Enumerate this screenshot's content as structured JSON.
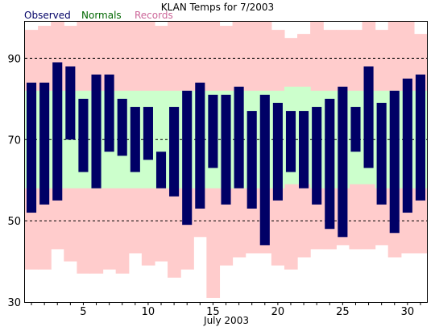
{
  "chart_data": {
    "type": "bar",
    "title": "KLAN Temps for 7/2003",
    "xlabel": "July 2003",
    "ylabel": "",
    "ylim": [
      30,
      99
    ],
    "grid": "dashed lines at 50, 70, 90",
    "legend": {
      "placement": "top-left",
      "entries": [
        {
          "name": "Observed",
          "color": "#000066"
        },
        {
          "name": "Normals",
          "color": "#006600"
        },
        {
          "name": "Records",
          "color": "#cc6699"
        }
      ]
    },
    "yticks": [
      30,
      50,
      70,
      90
    ],
    "xticks": [
      5,
      10,
      15,
      20,
      25,
      30
    ],
    "days": [
      1,
      2,
      3,
      4,
      5,
      6,
      7,
      8,
      9,
      10,
      11,
      12,
      13,
      14,
      15,
      16,
      17,
      18,
      19,
      20,
      21,
      22,
      23,
      24,
      25,
      26,
      27,
      28,
      29,
      30,
      31
    ],
    "series": [
      {
        "name": "Observed",
        "color": "#000066",
        "high": [
          84,
          84,
          89,
          88,
          80,
          86,
          86,
          80,
          78,
          78,
          67,
          78,
          82,
          84,
          81,
          81,
          83,
          77,
          81,
          79,
          77,
          77,
          78,
          80,
          83,
          78,
          88,
          79,
          82,
          85,
          86
        ],
        "low": [
          52,
          54,
          55,
          70,
          62,
          58,
          67,
          66,
          62,
          65,
          58,
          56,
          49,
          53,
          63,
          54,
          58,
          53,
          44,
          55,
          62,
          58,
          54,
          48,
          46,
          67,
          63,
          54,
          47,
          52,
          55
        ]
      },
      {
        "name": "Normals",
        "color": "#ccffcc",
        "high": [
          82,
          82,
          82,
          82,
          82,
          82,
          82,
          82,
          82,
          82,
          82,
          82,
          82,
          82,
          82,
          82,
          82,
          82,
          82,
          82,
          83,
          83,
          82,
          82,
          82,
          82,
          82,
          82,
          82,
          82,
          82
        ],
        "low": [
          58,
          58,
          58,
          58,
          58,
          58,
          58,
          58,
          58,
          58,
          58,
          58,
          58,
          58,
          58,
          58,
          58,
          58,
          58,
          58,
          59,
          59,
          58,
          58,
          58,
          59,
          59,
          58,
          58,
          58,
          58
        ]
      },
      {
        "name": "Records",
        "color": "#ffcccc",
        "high": [
          97,
          98,
          99,
          98,
          99,
          100,
          100,
          100,
          100,
          100,
          98,
          99,
          99,
          100,
          99,
          98,
          101,
          100,
          102,
          97,
          95,
          96,
          102,
          97,
          97,
          97,
          100,
          97,
          102,
          101,
          96
        ],
        "low": [
          38,
          38,
          43,
          40,
          37,
          37,
          38,
          37,
          42,
          39,
          40,
          36,
          38,
          46,
          31,
          39,
          41,
          42,
          42,
          39,
          38,
          41,
          43,
          43,
          44,
          43,
          43,
          44,
          41,
          42,
          42
        ]
      }
    ]
  }
}
